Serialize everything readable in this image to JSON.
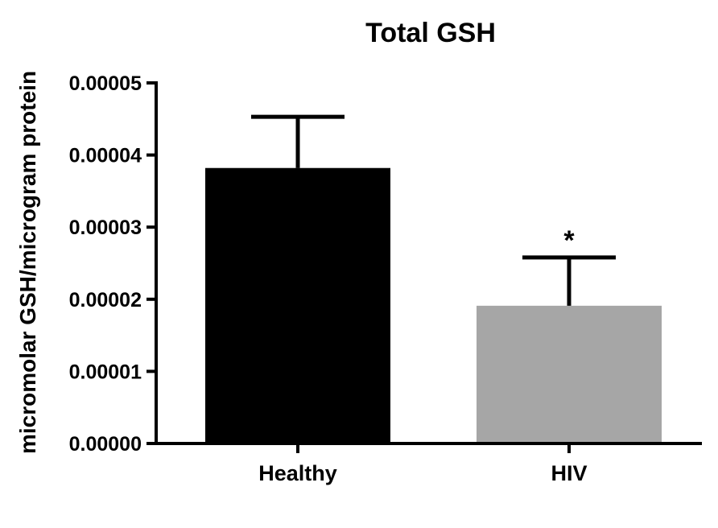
{
  "chart_data": {
    "type": "bar",
    "title": "Total GSH",
    "xlabel": "",
    "ylabel": "micromolar GSH/microgram protein",
    "categories": [
      "Healthy",
      "HIV"
    ],
    "values": [
      3.82e-05,
      1.91e-05
    ],
    "error_upper": [
      4.53e-05,
      2.58e-05
    ],
    "bar_colors": [
      "#000000",
      "#a6a6a6"
    ],
    "annotations": [
      {
        "category": "HIV",
        "text": "*"
      }
    ],
    "ylim": [
      0,
      5e-05
    ],
    "yticks": [
      0,
      1e-05,
      2e-05,
      3e-05,
      4e-05,
      5e-05
    ],
    "ytick_labels": [
      "0.00000",
      "0.00001",
      "0.00002",
      "0.00003",
      "0.00004",
      "0.00005"
    ],
    "grid": false,
    "legend": "none"
  }
}
